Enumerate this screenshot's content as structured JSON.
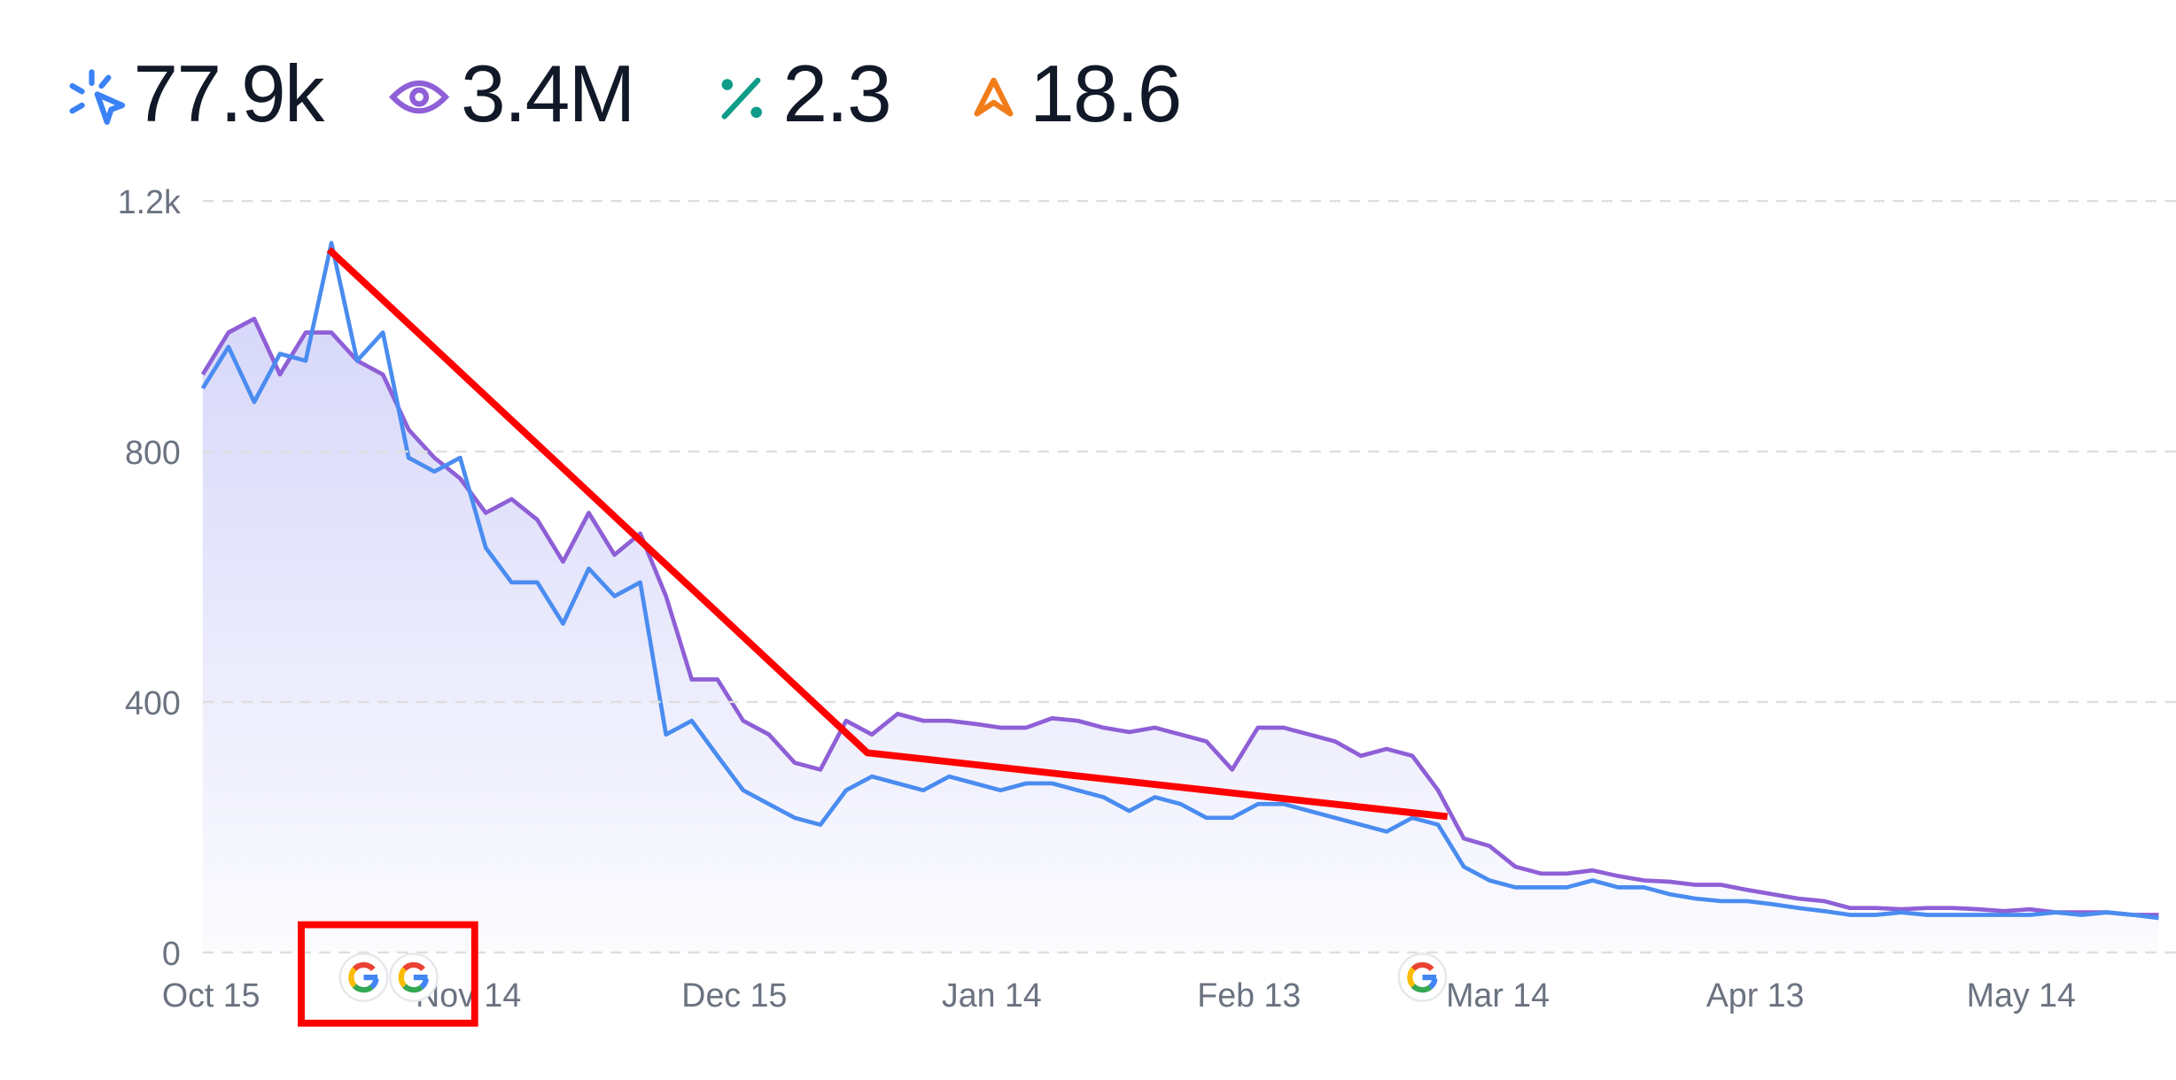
{
  "summary": [
    {
      "value": "77.9k"
    },
    {
      "value": "3.4M"
    },
    {
      "value": "2.3"
    },
    {
      "value": "18.6"
    }
  ],
  "chart_data": {
    "type": "line",
    "x": [
      0,
      3,
      6,
      9,
      12,
      15,
      18,
      21,
      24,
      27,
      30,
      33,
      36,
      39,
      42,
      45,
      48,
      51,
      54,
      57,
      60,
      63,
      66,
      69,
      72,
      75,
      78,
      81,
      84,
      87,
      90,
      93,
      96,
      99,
      102,
      105,
      108,
      111,
      114,
      117,
      120,
      123,
      126,
      129,
      132,
      135,
      138,
      141,
      144,
      147,
      150,
      153,
      156,
      159,
      162,
      165,
      168,
      171,
      174,
      177,
      180,
      183,
      186,
      189,
      192,
      195,
      198,
      201,
      204,
      207,
      210,
      213,
      216,
      219,
      222,
      225,
      228
    ],
    "series": [
      {
        "color": "#4a8cf0",
        "values": [
          901,
          967,
          879,
          956,
          945,
          1133,
          945,
          990,
          790,
          768,
          790,
          646,
          591,
          591,
          525,
          613,
          569,
          591,
          348,
          370,
          314,
          259,
          237,
          215,
          204,
          259,
          281,
          270,
          259,
          281,
          270,
          259,
          270,
          270,
          259,
          248,
          226,
          248,
          237,
          215,
          215,
          237,
          237,
          226,
          215,
          204,
          193,
          215,
          204,
          137,
          115,
          104,
          104,
          104,
          115,
          104,
          104,
          93,
          86,
          82,
          82,
          77,
          71,
          66,
          60,
          60,
          64,
          60,
          60,
          60,
          60,
          60,
          64,
          60,
          64,
          60,
          55
        ]
      },
      {
        "color": "#8e5fd6",
        "values": [
          923,
          990,
          1012,
          923,
          990,
          990,
          945,
          923,
          835,
          790,
          757,
          702,
          724,
          691,
          624,
          702,
          635,
          669,
          569,
          436,
          436,
          370,
          348,
          303,
          292,
          370,
          348,
          381,
          370,
          370,
          365,
          359,
          359,
          374,
          370,
          359,
          352,
          359,
          348,
          337,
          292,
          359,
          359,
          348,
          337,
          314,
          325,
          314,
          259,
          182,
          170,
          137,
          126,
          126,
          131,
          122,
          115,
          113,
          108,
          108,
          100,
          93,
          86,
          82,
          71,
          71,
          69,
          71,
          71,
          69,
          66,
          69,
          64,
          64,
          64,
          60,
          60
        ]
      }
    ],
    "xlim": [
      0,
      230
    ],
    "xticks": [
      {
        "value": 0,
        "label": "Oct 15"
      },
      {
        "value": 30,
        "label": "Nov 14"
      },
      {
        "value": 61,
        "label": "Dec 15"
      },
      {
        "value": 91,
        "label": "Jan 14"
      },
      {
        "value": 121,
        "label": "Feb 13"
      },
      {
        "value": 150,
        "label": "Mar 14"
      },
      {
        "value": 180,
        "label": "Apr 13"
      },
      {
        "value": 211,
        "label": "May 14"
      }
    ],
    "ylim": [
      0,
      1200
    ],
    "yticks": [
      0,
      400,
      800,
      {
        "value": 1200,
        "label": "1.2k"
      }
    ],
    "grid": true
  }
}
